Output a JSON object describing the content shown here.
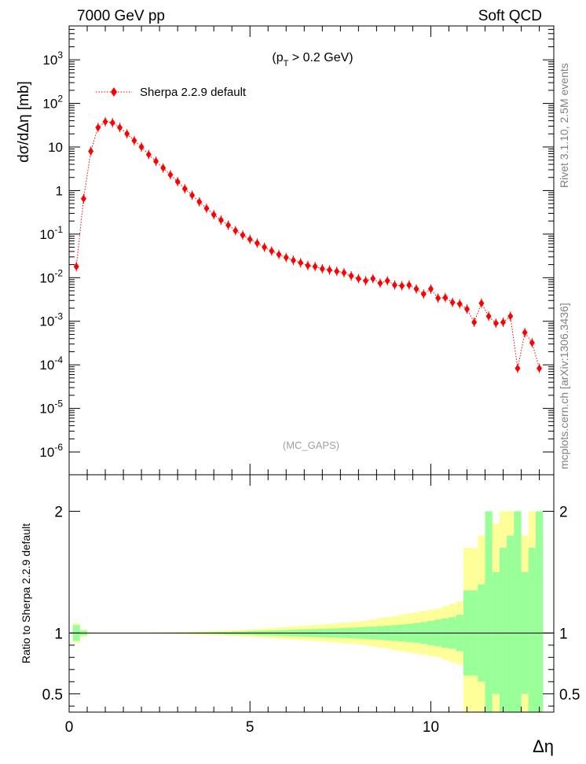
{
  "header": {
    "left": "7000 GeV pp",
    "right": "Soft QCD"
  },
  "side_labels": {
    "rivet": "Rivet 3.1.10,  2.5M events",
    "source": "mcplots.cern.ch [arXiv:1306.3436]"
  },
  "chart_data": [
    {
      "type": "scatter",
      "panel": "main",
      "title": "",
      "annotation": "(p_T > 0.2 GeV)",
      "watermark": "(MC_GAPS)",
      "ylabel": "dσ/dΔη [mb]",
      "xlabel": "Δη",
      "yscale": "log",
      "xlim": [
        0,
        13.4
      ],
      "ylim": [
        3e-07,
        6000
      ],
      "legend_position": "top-left",
      "y_tick_labels": [
        "10^-6",
        "10^-5",
        "10^-4",
        "10^-3",
        "10^-2",
        "10^-1",
        "1",
        "10",
        "10^2",
        "10^3"
      ],
      "series": [
        {
          "name": "Sherpa 2.2.9 default",
          "color": "#ff0000",
          "marker": "diamond",
          "line": "dotted",
          "x": [
            0.2,
            0.4,
            0.6,
            0.8,
            1.0,
            1.2,
            1.4,
            1.6,
            1.8,
            2.0,
            2.2,
            2.4,
            2.6,
            2.8,
            3.0,
            3.2,
            3.4,
            3.6,
            3.8,
            4.0,
            4.2,
            4.4,
            4.6,
            4.8,
            5.0,
            5.2,
            5.4,
            5.6,
            5.8,
            6.0,
            6.2,
            6.4,
            6.6,
            6.8,
            7.0,
            7.2,
            7.4,
            7.6,
            7.8,
            8.0,
            8.2,
            8.4,
            8.6,
            8.8,
            9.0,
            9.2,
            9.4,
            9.6,
            9.8,
            10.0,
            10.2,
            10.4,
            10.6,
            10.8,
            11.0,
            11.2,
            11.4,
            11.6,
            11.8,
            12.0,
            12.2,
            12.4,
            12.6,
            12.8,
            13.0
          ],
          "y": [
            0.018,
            0.65,
            8.0,
            28,
            38,
            36,
            28,
            20,
            14,
            10,
            6.7,
            4.7,
            3.3,
            2.3,
            1.6,
            1.1,
            0.78,
            0.55,
            0.39,
            0.28,
            0.21,
            0.16,
            0.12,
            0.095,
            0.076,
            0.062,
            0.05,
            0.041,
            0.034,
            0.029,
            0.025,
            0.022,
            0.019,
            0.018,
            0.016,
            0.015,
            0.014,
            0.013,
            0.011,
            0.0095,
            0.0085,
            0.0095,
            0.0075,
            0.0085,
            0.0068,
            0.0065,
            0.0068,
            0.0055,
            0.0042,
            0.0055,
            0.0034,
            0.0035,
            0.0027,
            0.0025,
            0.0019,
            0.00095,
            0.0026,
            0.0013,
            0.0009,
            0.00095,
            0.0013,
            8.3e-05,
            0.00055,
            0.00032,
            8.3e-05
          ]
        }
      ]
    },
    {
      "type": "area",
      "panel": "ratio",
      "title": "",
      "ylabel": "Ratio to Sherpa 2.2.9 default",
      "xlabel": "Δη",
      "xlim": [
        0,
        13.4
      ],
      "ylim": [
        0.35,
        2.3
      ],
      "y_tick_labels": [
        "0.5",
        "1",
        "2"
      ],
      "x_tick_labels": [
        "0",
        "5",
        "10"
      ],
      "reference_line": 1,
      "bins": [
        0.1,
        0.3,
        0.5,
        0.7,
        0.9,
        1.1,
        1.3,
        1.5,
        1.7,
        1.9,
        2.1,
        2.3,
        2.5,
        2.7,
        2.9,
        3.1,
        3.3,
        3.5,
        3.7,
        3.9,
        4.1,
        4.3,
        4.5,
        4.7,
        4.9,
        5.1,
        5.3,
        5.5,
        5.7,
        5.9,
        6.1,
        6.3,
        6.5,
        6.7,
        6.9,
        7.1,
        7.3,
        7.5,
        7.7,
        7.9,
        8.1,
        8.3,
        8.5,
        8.7,
        8.9,
        9.1,
        9.3,
        9.5,
        9.7,
        9.9,
        10.1,
        10.3,
        10.5,
        10.7,
        10.9,
        11.1,
        11.3,
        11.5,
        11.7,
        11.9,
        12.1,
        12.3,
        12.5,
        12.7,
        12.9,
        13.1
      ],
      "series": [
        {
          "name": "",
          "color": "#99ff99",
          "band": "stat",
          "half_width": [
            0.065,
            0.02,
            0.003,
            0.002,
            0.002,
            0.002,
            0.002,
            0.002,
            0.002,
            0.002,
            0.002,
            0.002,
            0.003,
            0.003,
            0.004,
            0.004,
            0.005,
            0.006,
            0.007,
            0.008,
            0.009,
            0.01,
            0.012,
            0.013,
            0.015,
            0.017,
            0.019,
            0.021,
            0.023,
            0.025,
            0.027,
            0.029,
            0.031,
            0.033,
            0.035,
            0.037,
            0.039,
            0.041,
            0.044,
            0.047,
            0.05,
            0.053,
            0.056,
            0.06,
            0.065,
            0.07,
            0.075,
            0.08,
            0.09,
            0.1,
            0.11,
            0.12,
            0.13,
            0.15,
            0.35,
            0.35,
            0.4,
            1.0,
            0.5,
            0.7,
            0.8,
            1.0,
            0.5,
            0.7,
            1.0
          ]
        },
        {
          "name": "",
          "color": "#ffff99",
          "band": "total",
          "half_width": [
            0.08,
            0.03,
            0.004,
            0.003,
            0.003,
            0.003,
            0.003,
            0.003,
            0.003,
            0.003,
            0.003,
            0.004,
            0.005,
            0.006,
            0.007,
            0.008,
            0.01,
            0.012,
            0.014,
            0.016,
            0.018,
            0.021,
            0.024,
            0.027,
            0.03,
            0.034,
            0.038,
            0.042,
            0.046,
            0.05,
            0.054,
            0.058,
            0.062,
            0.066,
            0.07,
            0.075,
            0.08,
            0.085,
            0.09,
            0.095,
            0.1,
            0.11,
            0.12,
            0.13,
            0.14,
            0.15,
            0.16,
            0.17,
            0.18,
            0.19,
            0.2,
            0.22,
            0.24,
            0.26,
            0.7,
            0.7,
            0.8,
            1.0,
            0.9,
            1.0,
            1.0,
            1.0,
            0.8,
            1.0,
            1.0
          ]
        }
      ]
    }
  ]
}
